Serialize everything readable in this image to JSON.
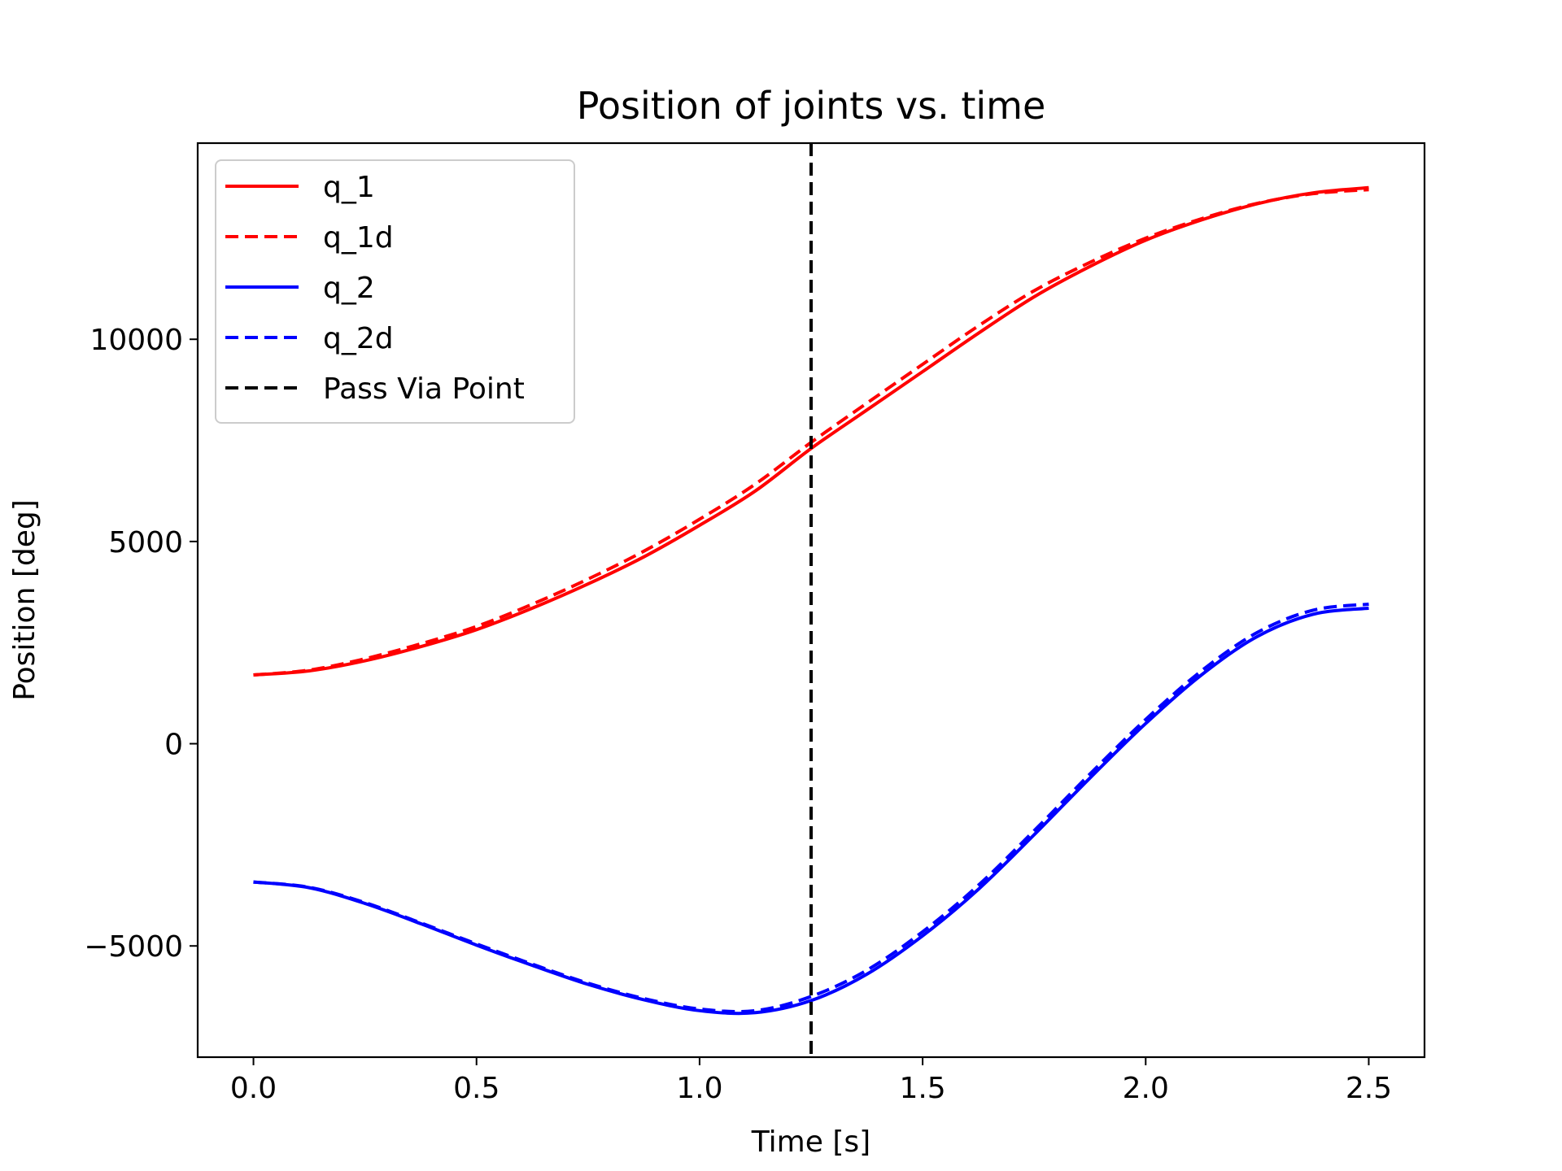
{
  "chart_data": {
    "type": "line",
    "title": "Position of joints vs. time",
    "xlabel": "Time [s]",
    "ylabel": "Position [deg]",
    "xlim": [
      -0.125,
      2.625
    ],
    "ylim": [
      -7750,
      14850
    ],
    "xticks": [
      0.0,
      0.5,
      1.0,
      1.5,
      2.0,
      2.5
    ],
    "xtick_labels": [
      "0.0",
      "0.5",
      "1.0",
      "1.5",
      "2.0",
      "2.5"
    ],
    "yticks": [
      -5000,
      0,
      5000,
      10000
    ],
    "ytick_labels": [
      "−5000",
      "0",
      "5000",
      "10000"
    ],
    "grid": false,
    "legend_position": "top-left",
    "series": [
      {
        "name": "q_1",
        "color": "#ff0000",
        "style": "solid",
        "x": [
          0,
          0.125,
          0.25,
          0.375,
          0.5,
          0.625,
          0.75,
          0.875,
          1.0,
          1.125,
          1.25,
          1.375,
          1.5,
          1.625,
          1.75,
          1.875,
          2.0,
          2.125,
          2.25,
          2.375,
          2.5
        ],
        "y": [
          1700,
          1800,
          2050,
          2400,
          2820,
          3350,
          3950,
          4620,
          5400,
          6250,
          7300,
          8250,
          9200,
          10150,
          11050,
          11800,
          12450,
          12950,
          13350,
          13620,
          13750
        ]
      },
      {
        "name": "q_1d",
        "color": "#ff0000",
        "style": "dashed",
        "x": [
          0,
          0.125,
          0.25,
          0.375,
          0.5,
          0.625,
          0.75,
          0.875,
          1.0,
          1.125,
          1.25,
          1.375,
          1.5,
          1.625,
          1.75,
          1.875,
          2.0,
          2.125,
          2.25,
          2.375,
          2.5
        ],
        "y": [
          1700,
          1820,
          2100,
          2470,
          2900,
          3450,
          4070,
          4760,
          5550,
          6420,
          7450,
          8420,
          9380,
          10330,
          11200,
          11900,
          12500,
          12980,
          13360,
          13600,
          13700
        ]
      },
      {
        "name": "q_2",
        "color": "#0000ff",
        "style": "solid",
        "x": [
          0,
          0.125,
          0.25,
          0.375,
          0.5,
          0.625,
          0.75,
          0.875,
          1.0,
          1.125,
          1.25,
          1.375,
          1.5,
          1.625,
          1.75,
          1.875,
          2.0,
          2.125,
          2.25,
          2.375,
          2.5
        ],
        "y": [
          -3420,
          -3560,
          -3950,
          -4450,
          -4980,
          -5480,
          -5950,
          -6330,
          -6600,
          -6650,
          -6350,
          -5700,
          -4750,
          -3600,
          -2250,
          -850,
          500,
          1700,
          2650,
          3200,
          3350
        ]
      },
      {
        "name": "q_2d",
        "color": "#0000ff",
        "style": "dashed",
        "x": [
          0,
          0.125,
          0.25,
          0.375,
          0.5,
          0.625,
          0.75,
          0.875,
          1.0,
          1.125,
          1.25,
          1.375,
          1.5,
          1.625,
          1.75,
          1.875,
          2.0,
          2.125,
          2.25,
          2.375,
          2.5
        ],
        "y": [
          -3420,
          -3550,
          -3930,
          -4430,
          -4950,
          -5450,
          -5920,
          -6300,
          -6560,
          -6600,
          -6250,
          -5600,
          -4650,
          -3500,
          -2150,
          -750,
          600,
          1800,
          2750,
          3300,
          3450
        ]
      }
    ],
    "vlines": [
      {
        "name": "Pass Via Point",
        "x": 1.25,
        "color": "#000000",
        "style": "dashed"
      }
    ]
  }
}
